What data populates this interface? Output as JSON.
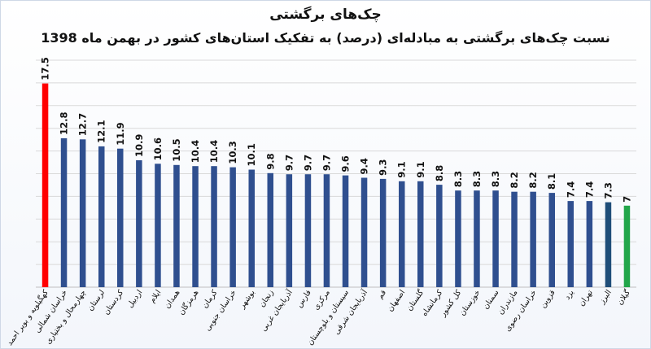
{
  "chart_data": {
    "type": "bar",
    "title": "چک‌های برگشتی",
    "subtitle": "نسبت چک‌های برگشتی به مبادله‌ای (درصد) به تفکیک استان‌های کشور در بهمن ماه 1398",
    "categories": [
      "کهگیلویه و بویر احمد",
      "خراسان شمالی",
      "چهارمحال و بختیاری",
      "لرستان",
      "کردستان",
      "اردبیل",
      "ایلام",
      "همدان",
      "هرمزگان",
      "کرمان",
      "خراسان جنوبی",
      "بوشهر",
      "زنجان",
      "آذربایجان غربی",
      "فارس",
      "مرکزی",
      "سیستان و بلوچستان",
      "آذربایجان شرقی",
      "قم",
      "اصفهان",
      "گلستان",
      "کرمانشاه",
      "کل کشور",
      "خوزستان",
      "سمنان",
      "مازندران",
      "خراسان رضوی",
      "قزوین",
      "یزد",
      "تهران",
      "البرز",
      "گیلان"
    ],
    "values": [
      17.5,
      12.8,
      12.7,
      12.1,
      11.9,
      10.9,
      10.6,
      10.5,
      10.4,
      10.4,
      10.3,
      10.1,
      9.8,
      9.7,
      9.7,
      9.7,
      9.6,
      9.4,
      9.3,
      9.1,
      9.1,
      8.8,
      8.3,
      8.3,
      8.3,
      8.2,
      8.2,
      8.1,
      7.4,
      7.4,
      7.3,
      7
    ],
    "value_labels": [
      "17.5",
      "12.8",
      "12.7",
      "12.1",
      "11.9",
      "10.9",
      "10.6",
      "10.5",
      "10.4",
      "10.4",
      "10.3",
      "10.1",
      "9.8",
      "9.7",
      "9.7",
      "9.7",
      "9.6",
      "9.4",
      "9.3",
      "9.1",
      "9.1",
      "8.8",
      "8.3",
      "8.3",
      "8.3",
      "8.2",
      "8.2",
      "8.1",
      "7.4",
      "7.4",
      "7.3",
      "7"
    ],
    "colors": [
      "#ff0000",
      "#2f4f8f",
      "#2f4f8f",
      "#2f4f8f",
      "#2f4f8f",
      "#2f4f8f",
      "#2f4f8f",
      "#2f4f8f",
      "#2f4f8f",
      "#2f4f8f",
      "#2f4f8f",
      "#2f4f8f",
      "#2f4f8f",
      "#2f4f8f",
      "#2f4f8f",
      "#2f4f8f",
      "#2f4f8f",
      "#2f4f8f",
      "#2f4f8f",
      "#2f4f8f",
      "#2f4f8f",
      "#2f4f8f",
      "#2f4f8f",
      "#2f4f8f",
      "#2f4f8f",
      "#2f4f8f",
      "#2f4f8f",
      "#2f4f8f",
      "#2f4f8f",
      "#2f4f8f",
      "#1f4e79",
      "#22a64a"
    ],
    "ylim": [
      0,
      19.5
    ],
    "grid": true,
    "xlabel": "",
    "ylabel": ""
  }
}
